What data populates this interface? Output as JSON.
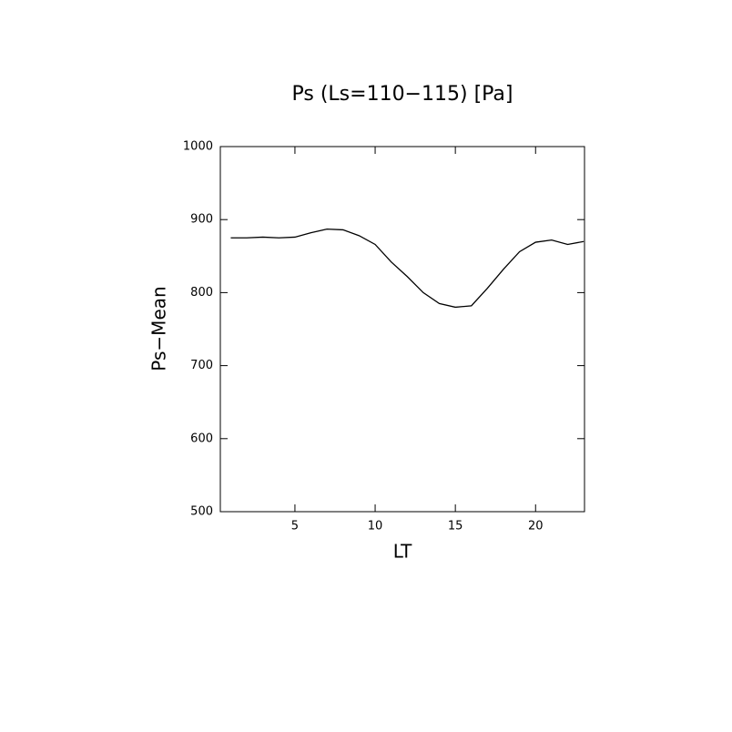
{
  "chart_data": {
    "type": "line",
    "title": "Ps (Ls=110−115) [Pa]",
    "x_label": "LT",
    "y_label": "Ps−Mean",
    "x": [
      1,
      2,
      3,
      4,
      5,
      6,
      7,
      8,
      9,
      10,
      11,
      12,
      13,
      14,
      15,
      16,
      17,
      18,
      19,
      20,
      21,
      22,
      23
    ],
    "series": [
      {
        "color": "#000000",
        "values": [
          875,
          875,
          876,
          875,
          876,
          882,
          887,
          886,
          878,
          866,
          842,
          822,
          800,
          785,
          780,
          782,
          806,
          832,
          856,
          869,
          872,
          866,
          870
        ]
      }
    ],
    "xlim": [
      0.35,
      23.05
    ],
    "xticks": [
      5,
      10,
      15,
      20
    ],
    "ylim": [
      500,
      1000
    ],
    "yticks": [
      500,
      600,
      700,
      800,
      900,
      1000
    ],
    "grid": false
  }
}
